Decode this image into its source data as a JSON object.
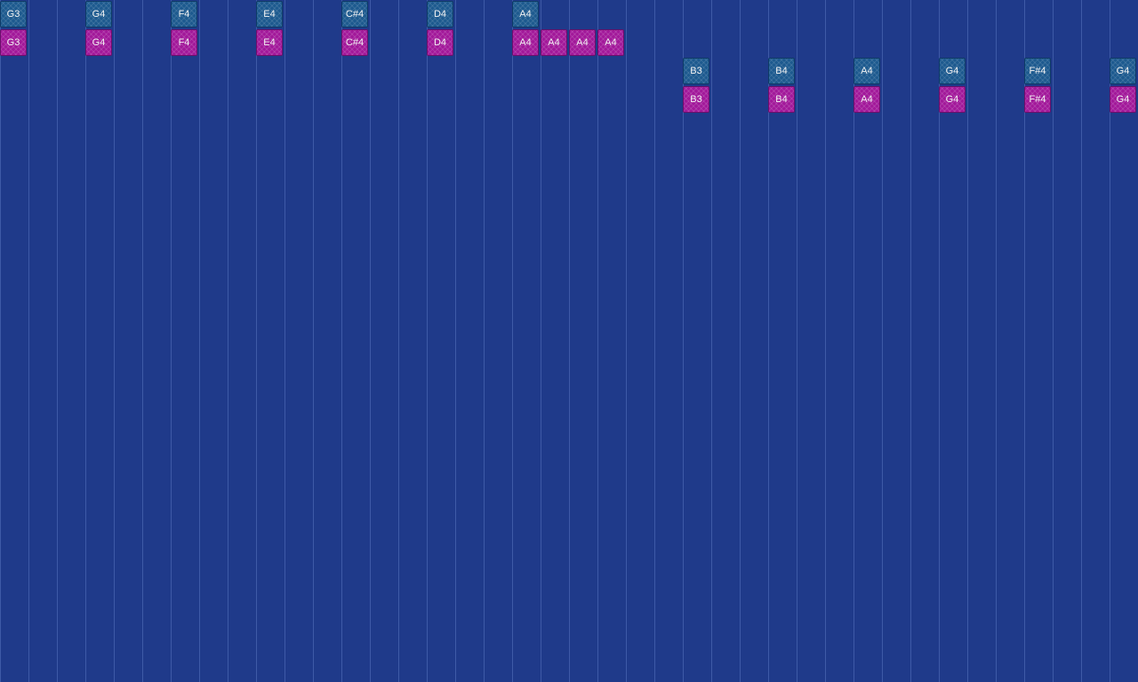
{
  "colors": {
    "background": "#1f3a8a",
    "grid_line": "#4a66b0",
    "blue_note": "#1d5a8f",
    "pink_note": "#a2189a"
  },
  "notes": [
    {
      "label": "G3",
      "kind": "blue",
      "column": 0,
      "row": 0
    },
    {
      "label": "G4",
      "kind": "blue",
      "column": 3,
      "row": 0
    },
    {
      "label": "F4",
      "kind": "blue",
      "column": 6,
      "row": 0
    },
    {
      "label": "E4",
      "kind": "blue",
      "column": 9,
      "row": 0
    },
    {
      "label": "C#4",
      "kind": "blue",
      "column": 12,
      "row": 0
    },
    {
      "label": "D4",
      "kind": "blue",
      "column": 15,
      "row": 0
    },
    {
      "label": "A4",
      "kind": "blue",
      "column": 18,
      "row": 0
    },
    {
      "label": "G3",
      "kind": "pink",
      "column": 0,
      "row": 1
    },
    {
      "label": "G4",
      "kind": "pink",
      "column": 3,
      "row": 1
    },
    {
      "label": "F4",
      "kind": "pink",
      "column": 6,
      "row": 1
    },
    {
      "label": "E4",
      "kind": "pink",
      "column": 9,
      "row": 1
    },
    {
      "label": "C#4",
      "kind": "pink",
      "column": 12,
      "row": 1
    },
    {
      "label": "D4",
      "kind": "pink",
      "column": 15,
      "row": 1
    },
    {
      "label": "A4",
      "kind": "pink",
      "column": 18,
      "row": 1
    },
    {
      "label": "A4",
      "kind": "pink",
      "column": 19,
      "row": 1
    },
    {
      "label": "A4",
      "kind": "pink",
      "column": 20,
      "row": 1
    },
    {
      "label": "A4",
      "kind": "pink",
      "column": 21,
      "row": 1
    },
    {
      "label": "B3",
      "kind": "blue",
      "column": 24,
      "row": 2
    },
    {
      "label": "B4",
      "kind": "blue",
      "column": 27,
      "row": 2
    },
    {
      "label": "A4",
      "kind": "blue",
      "column": 30,
      "row": 2
    },
    {
      "label": "G4",
      "kind": "blue",
      "column": 33,
      "row": 2
    },
    {
      "label": "F#4",
      "kind": "blue",
      "column": 36,
      "row": 2
    },
    {
      "label": "G4",
      "kind": "blue",
      "column": 39,
      "row": 2
    },
    {
      "label": "B3",
      "kind": "pink",
      "column": 24,
      "row": 3
    },
    {
      "label": "B4",
      "kind": "pink",
      "column": 27,
      "row": 3
    },
    {
      "label": "A4",
      "kind": "pink",
      "column": 30,
      "row": 3
    },
    {
      "label": "G4",
      "kind": "pink",
      "column": 33,
      "row": 3
    },
    {
      "label": "F#4",
      "kind": "pink",
      "column": 36,
      "row": 3
    },
    {
      "label": "G4",
      "kind": "pink",
      "column": 39,
      "row": 3
    }
  ]
}
